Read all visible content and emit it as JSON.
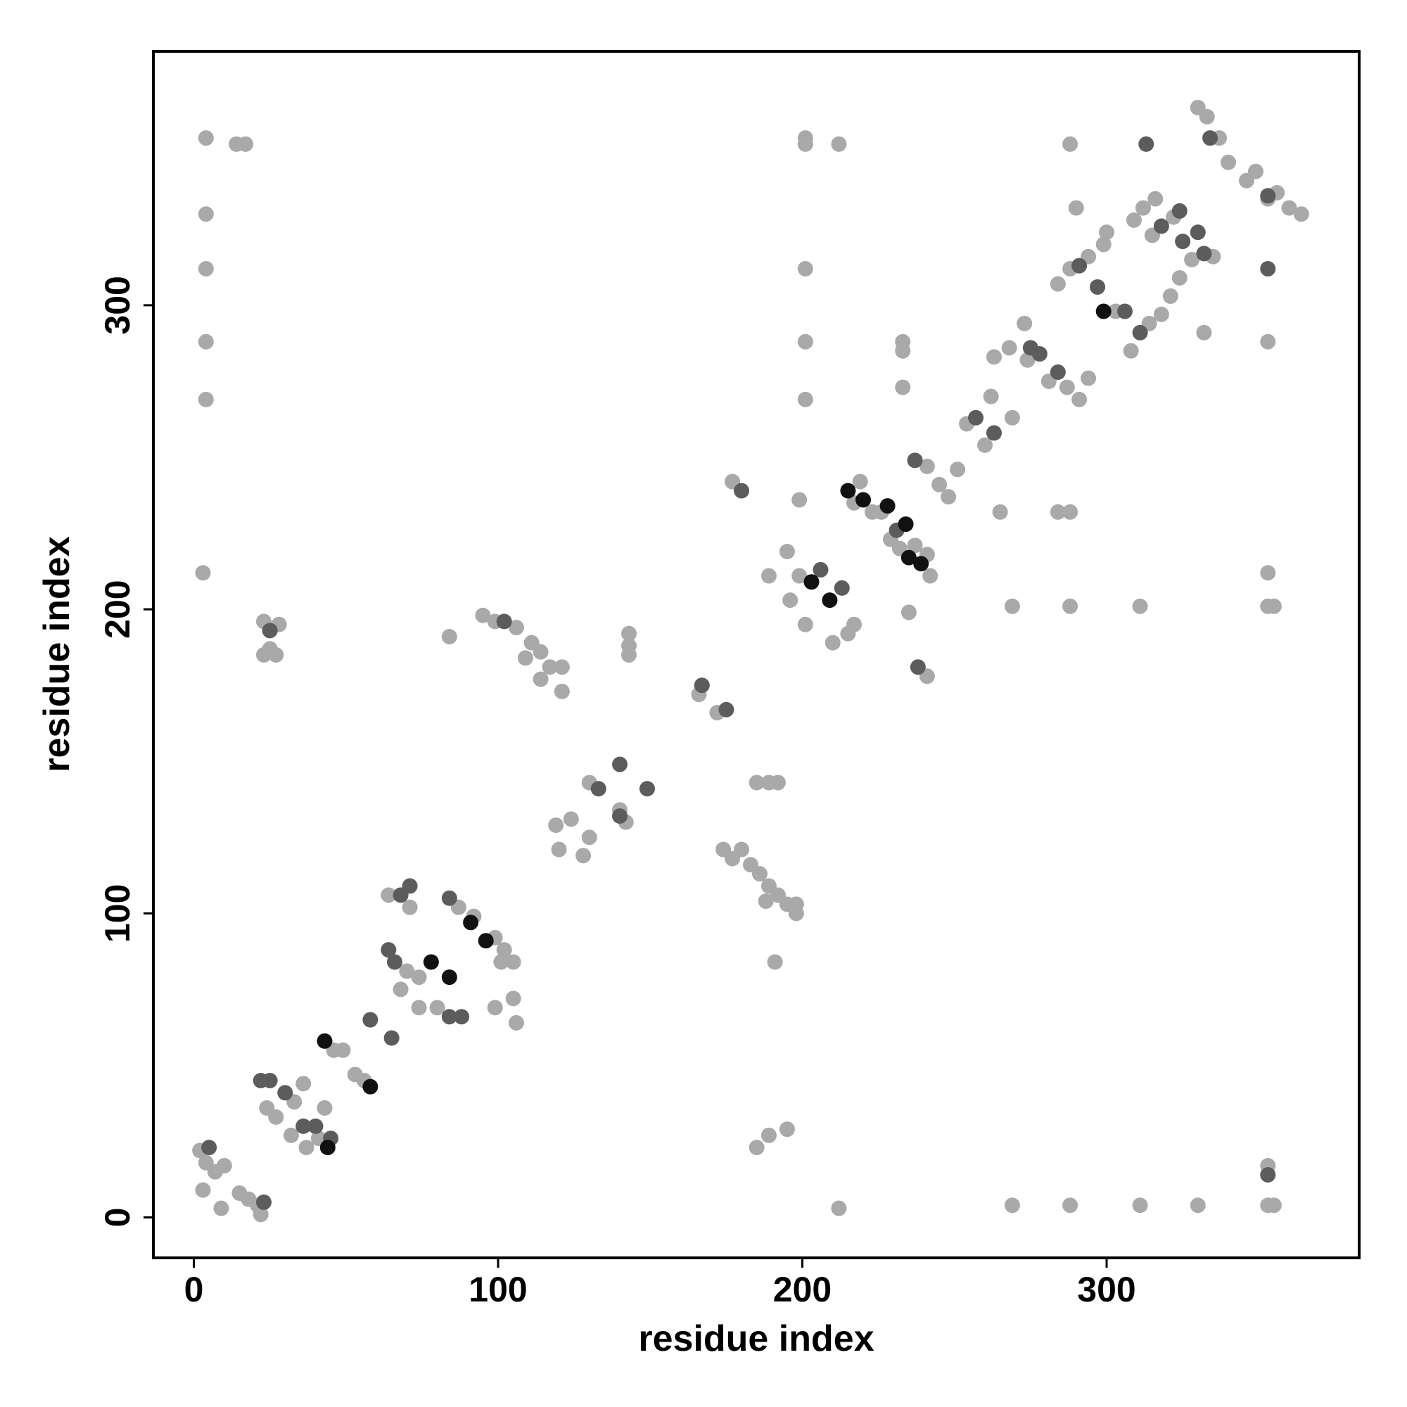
{
  "chart_data": {
    "type": "scatter",
    "x_label": "residue index",
    "y_label": "residue index",
    "xlim": [
      -13.3,
      383
    ],
    "ylim": [
      -13.3,
      383.5
    ],
    "xticks": [
      0,
      100,
      200,
      300
    ],
    "yticks": [
      0,
      100,
      200,
      300
    ],
    "grid": false,
    "series": [
      {
        "color": "#a9a9a9",
        "x": [
          2,
          3,
          4,
          7,
          9,
          10,
          15,
          18,
          21,
          22,
          24,
          27,
          33,
          36,
          32,
          37,
          41,
          43,
          46,
          49,
          53,
          56,
          64,
          71,
          70,
          68,
          74,
          74,
          80,
          87,
          92,
          99,
          102,
          101,
          105,
          99,
          105,
          106,
          95,
          99,
          106,
          111,
          109,
          114,
          117,
          121,
          121,
          114,
          84,
          143,
          143,
          143,
          166,
          172,
          119,
          124,
          120,
          130,
          128,
          130,
          140,
          142,
          174,
          177,
          180,
          183,
          186,
          189,
          192,
          195,
          198,
          198,
          188,
          191,
          185,
          189,
          192,
          185,
          189,
          195,
          189,
          195,
          199,
          196,
          201,
          210,
          217,
          215,
          217,
          219,
          223,
          226,
          229,
          232,
          237,
          241,
          242,
          235,
          241,
          241,
          245,
          248,
          251,
          254,
          260,
          262,
          269,
          263,
          268,
          273,
          274,
          281,
          287,
          291,
          294,
          284,
          288,
          294,
          299,
          303,
          308,
          314,
          318,
          321,
          324,
          328,
          335,
          315,
          309,
          312,
          316,
          322,
          290,
          300,
          330,
          333,
          337,
          340,
          346,
          349,
          353,
          356,
          360,
          364,
          332,
          4,
          4,
          4,
          4,
          4,
          3,
          14,
          17,
          201,
          201,
          212,
          201,
          201,
          201,
          199,
          177,
          288,
          353,
          353,
          353,
          355,
          311,
          288,
          269,
          265,
          284,
          288,
          233,
          233,
          233,
          269,
          288,
          311,
          330,
          353,
          355,
          353,
          212,
          23,
          28,
          25,
          23,
          27
        ],
        "values": [
          22,
          9,
          18,
          15,
          3,
          17,
          8,
          6,
          4,
          1,
          36,
          33,
          38,
          44,
          27,
          23,
          26,
          36,
          55,
          55,
          47,
          45,
          106,
          102,
          81,
          75,
          79,
          69,
          69,
          102,
          99,
          92,
          88,
          84,
          84,
          69,
          72,
          64,
          198,
          196,
          194,
          189,
          184,
          186,
          181,
          181,
          173,
          177,
          191,
          192,
          188,
          185,
          172,
          166,
          129,
          131,
          121,
          125,
          119,
          143,
          134,
          130,
          121,
          118,
          121,
          116,
          113,
          109,
          106,
          103,
          103,
          100,
          104,
          84,
          143,
          143,
          143,
          23,
          27,
          29,
          211,
          219,
          211,
          203,
          195,
          189,
          195,
          192,
          235,
          242,
          232,
          232,
          223,
          220,
          221,
          218,
          211,
          199,
          178,
          247,
          241,
          237,
          246,
          261,
          254,
          270,
          263,
          283,
          286,
          294,
          282,
          275,
          273,
          269,
          276,
          307,
          312,
          316,
          320,
          298,
          285,
          294,
          297,
          303,
          309,
          315,
          316,
          323,
          328,
          332,
          335,
          329,
          332,
          324,
          365,
          362,
          355,
          347,
          341,
          344,
          335,
          337,
          332,
          330,
          291,
          355,
          330,
          312,
          288,
          269,
          212,
          353,
          353,
          355,
          353,
          353,
          312,
          288,
          269,
          236,
          242,
          353,
          288,
          212,
          201,
          201,
          201,
          201,
          201,
          232,
          232,
          232,
          288,
          285,
          273,
          4,
          4,
          4,
          4,
          4,
          4,
          17,
          3,
          196,
          195,
          187,
          185,
          185
        ]
      },
      {
        "color": "#5c5c5c",
        "x": [
          5,
          23,
          22,
          25,
          30,
          36,
          40,
          45,
          58,
          65,
          68,
          71,
          64,
          66,
          84,
          88,
          84,
          102,
          167,
          175,
          133,
          140,
          149,
          140,
          206,
          213,
          231,
          238,
          237,
          257,
          263,
          275,
          278,
          284,
          291,
          297,
          306,
          311,
          332,
          324,
          318,
          325,
          330,
          334,
          353,
          353,
          313,
          180,
          353,
          25
        ],
        "values": [
          23,
          5,
          45,
          45,
          41,
          30,
          30,
          26,
          65,
          59,
          106,
          109,
          88,
          84,
          66,
          66,
          105,
          196,
          175,
          167,
          141,
          149,
          141,
          132,
          213,
          207,
          226,
          181,
          249,
          263,
          258,
          286,
          284,
          278,
          313,
          306,
          298,
          291,
          317,
          331,
          326,
          321,
          324,
          355,
          336,
          312,
          353,
          239,
          14,
          193
        ]
      },
      {
        "color": "#111111",
        "x": [
          44,
          43,
          58,
          78,
          84,
          91,
          96,
          203,
          209,
          215,
          220,
          228,
          234,
          235,
          239,
          299
        ],
        "values": [
          23,
          58,
          43,
          84,
          79,
          97,
          91,
          209,
          203,
          239,
          236,
          234,
          228,
          217,
          215,
          298
        ]
      }
    ]
  }
}
